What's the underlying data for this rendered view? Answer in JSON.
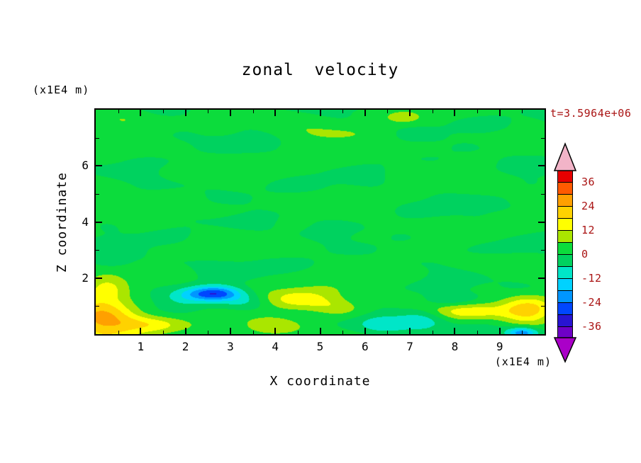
{
  "title": "zonal velocity",
  "time_label": "t=3.5964e+06",
  "colors": {
    "frame": "#000000",
    "label": "#000000",
    "annotation": "#aa1414",
    "background": "#ffffff"
  },
  "axes": {
    "x": {
      "label": "X coordinate",
      "unit_label": "(x1E4 m)",
      "min": 0,
      "max": 10,
      "major_ticks": [
        1,
        2,
        3,
        4,
        5,
        6,
        7,
        8,
        9
      ],
      "minor_step": 0.5
    },
    "z": {
      "label": "Z coordinate",
      "unit_label": "(x1E4 m)",
      "min": 0,
      "max": 8,
      "major_ticks": [
        2,
        4,
        6
      ],
      "minor_ticks": [
        1,
        3,
        5,
        7
      ]
    }
  },
  "chart_data": {
    "type": "heatmap",
    "subtype": "filled-contour",
    "title": "zonal velocity",
    "xlabel": "X coordinate",
    "ylabel": "Z coordinate",
    "x_range": [
      0,
      10
    ],
    "z_range": [
      0,
      8
    ],
    "time_annotation": "t=3.5964e+06",
    "level_step": 6,
    "colorbar": {
      "labels": [
        36,
        24,
        12,
        0,
        -12,
        -24,
        -36
      ],
      "over_color": "#f2b4c8",
      "under_color": "#aa00c8",
      "bands": [
        {
          "min": 36,
          "max": 42,
          "color": "#e60000"
        },
        {
          "min": 30,
          "max": 36,
          "color": "#ff5a00"
        },
        {
          "min": 24,
          "max": 30,
          "color": "#ffa000"
        },
        {
          "min": 18,
          "max": 24,
          "color": "#ffd200"
        },
        {
          "min": 12,
          "max": 18,
          "color": "#ffff00"
        },
        {
          "min": 6,
          "max": 12,
          "color": "#aae600"
        },
        {
          "min": 0,
          "max": 6,
          "color": "#0cdc3c"
        },
        {
          "min": -6,
          "max": 0,
          "color": "#00d25f"
        },
        {
          "min": -12,
          "max": -6,
          "color": "#00e6c8"
        },
        {
          "min": -18,
          "max": -12,
          "color": "#00d2ff"
        },
        {
          "min": -24,
          "max": -18,
          "color": "#0096ff"
        },
        {
          "min": -30,
          "max": -24,
          "color": "#0046ff"
        },
        {
          "min": -36,
          "max": -30,
          "color": "#2814d2"
        },
        {
          "min": -42,
          "max": -36,
          "color": "#6e00c8"
        }
      ]
    },
    "field": {
      "base": 0.8,
      "noise": [
        {
          "a": 2.1,
          "fx": 1.35,
          "px": 0.4,
          "fz": 2.6,
          "pz": 0.8
        },
        {
          "a": 1.5,
          "fx": 0.6,
          "px": 2.4,
          "fz": 4.3,
          "pz": 2.2
        },
        {
          "a": 0.95,
          "fx": 2.3,
          "px": 4.1,
          "fz": 6.9,
          "pz": 4.4
        },
        {
          "a": 0.75,
          "fx": 3.7,
          "px": 1.0,
          "fz": 1.7,
          "pz": 3.0
        }
      ],
      "blobs": [
        {
          "x": 0.15,
          "z": 0.55,
          "sx": 0.75,
          "sz": 0.85,
          "a": 25
        },
        {
          "x": 1.25,
          "z": 0.35,
          "sx": 0.85,
          "sz": 0.32,
          "a": 13
        },
        {
          "x": 0.25,
          "z": 1.7,
          "sx": 0.45,
          "sz": 0.5,
          "a": 8
        },
        {
          "x": 2.65,
          "z": 1.45,
          "sx": 0.6,
          "sz": 0.27,
          "a": -30
        },
        {
          "x": 1.95,
          "z": 1.3,
          "sx": 0.55,
          "sz": 0.33,
          "a": -8
        },
        {
          "x": 3.35,
          "z": 1.15,
          "sx": 0.5,
          "sz": 0.3,
          "a": -7
        },
        {
          "x": 4.55,
          "z": 1.25,
          "sx": 0.8,
          "sz": 0.4,
          "a": 15
        },
        {
          "x": 5.4,
          "z": 0.95,
          "sx": 0.6,
          "sz": 0.33,
          "a": 10
        },
        {
          "x": 3.85,
          "z": 0.3,
          "sx": 0.6,
          "sz": 0.35,
          "a": 9
        },
        {
          "x": 6.35,
          "z": 0.35,
          "sx": 0.55,
          "sz": 0.33,
          "a": -12
        },
        {
          "x": 7.3,
          "z": 0.5,
          "sx": 0.55,
          "sz": 0.38,
          "a": -11
        },
        {
          "x": 8.3,
          "z": 0.8,
          "sx": 0.9,
          "sz": 0.3,
          "a": 12
        },
        {
          "x": 9.65,
          "z": 0.85,
          "sx": 0.6,
          "sz": 0.5,
          "a": 21
        },
        {
          "x": 9.5,
          "z": 0.05,
          "sx": 0.35,
          "sz": 0.2,
          "a": -24
        },
        {
          "x": 6.85,
          "z": 7.75,
          "sx": 0.4,
          "sz": 0.22,
          "a": 11
        },
        {
          "x": 0.5,
          "z": 7.65,
          "sx": 0.55,
          "sz": 0.3,
          "a": 7
        },
        {
          "x": 7.9,
          "z": 1.2,
          "sx": 0.6,
          "sz": 0.25,
          "a": -7
        },
        {
          "x": 0.3,
          "z": 2.6,
          "sx": 0.5,
          "sz": 0.35,
          "a": -6
        },
        {
          "x": 5.0,
          "z": 7.15,
          "sx": 0.9,
          "sz": 0.35,
          "a": 5
        }
      ]
    }
  }
}
